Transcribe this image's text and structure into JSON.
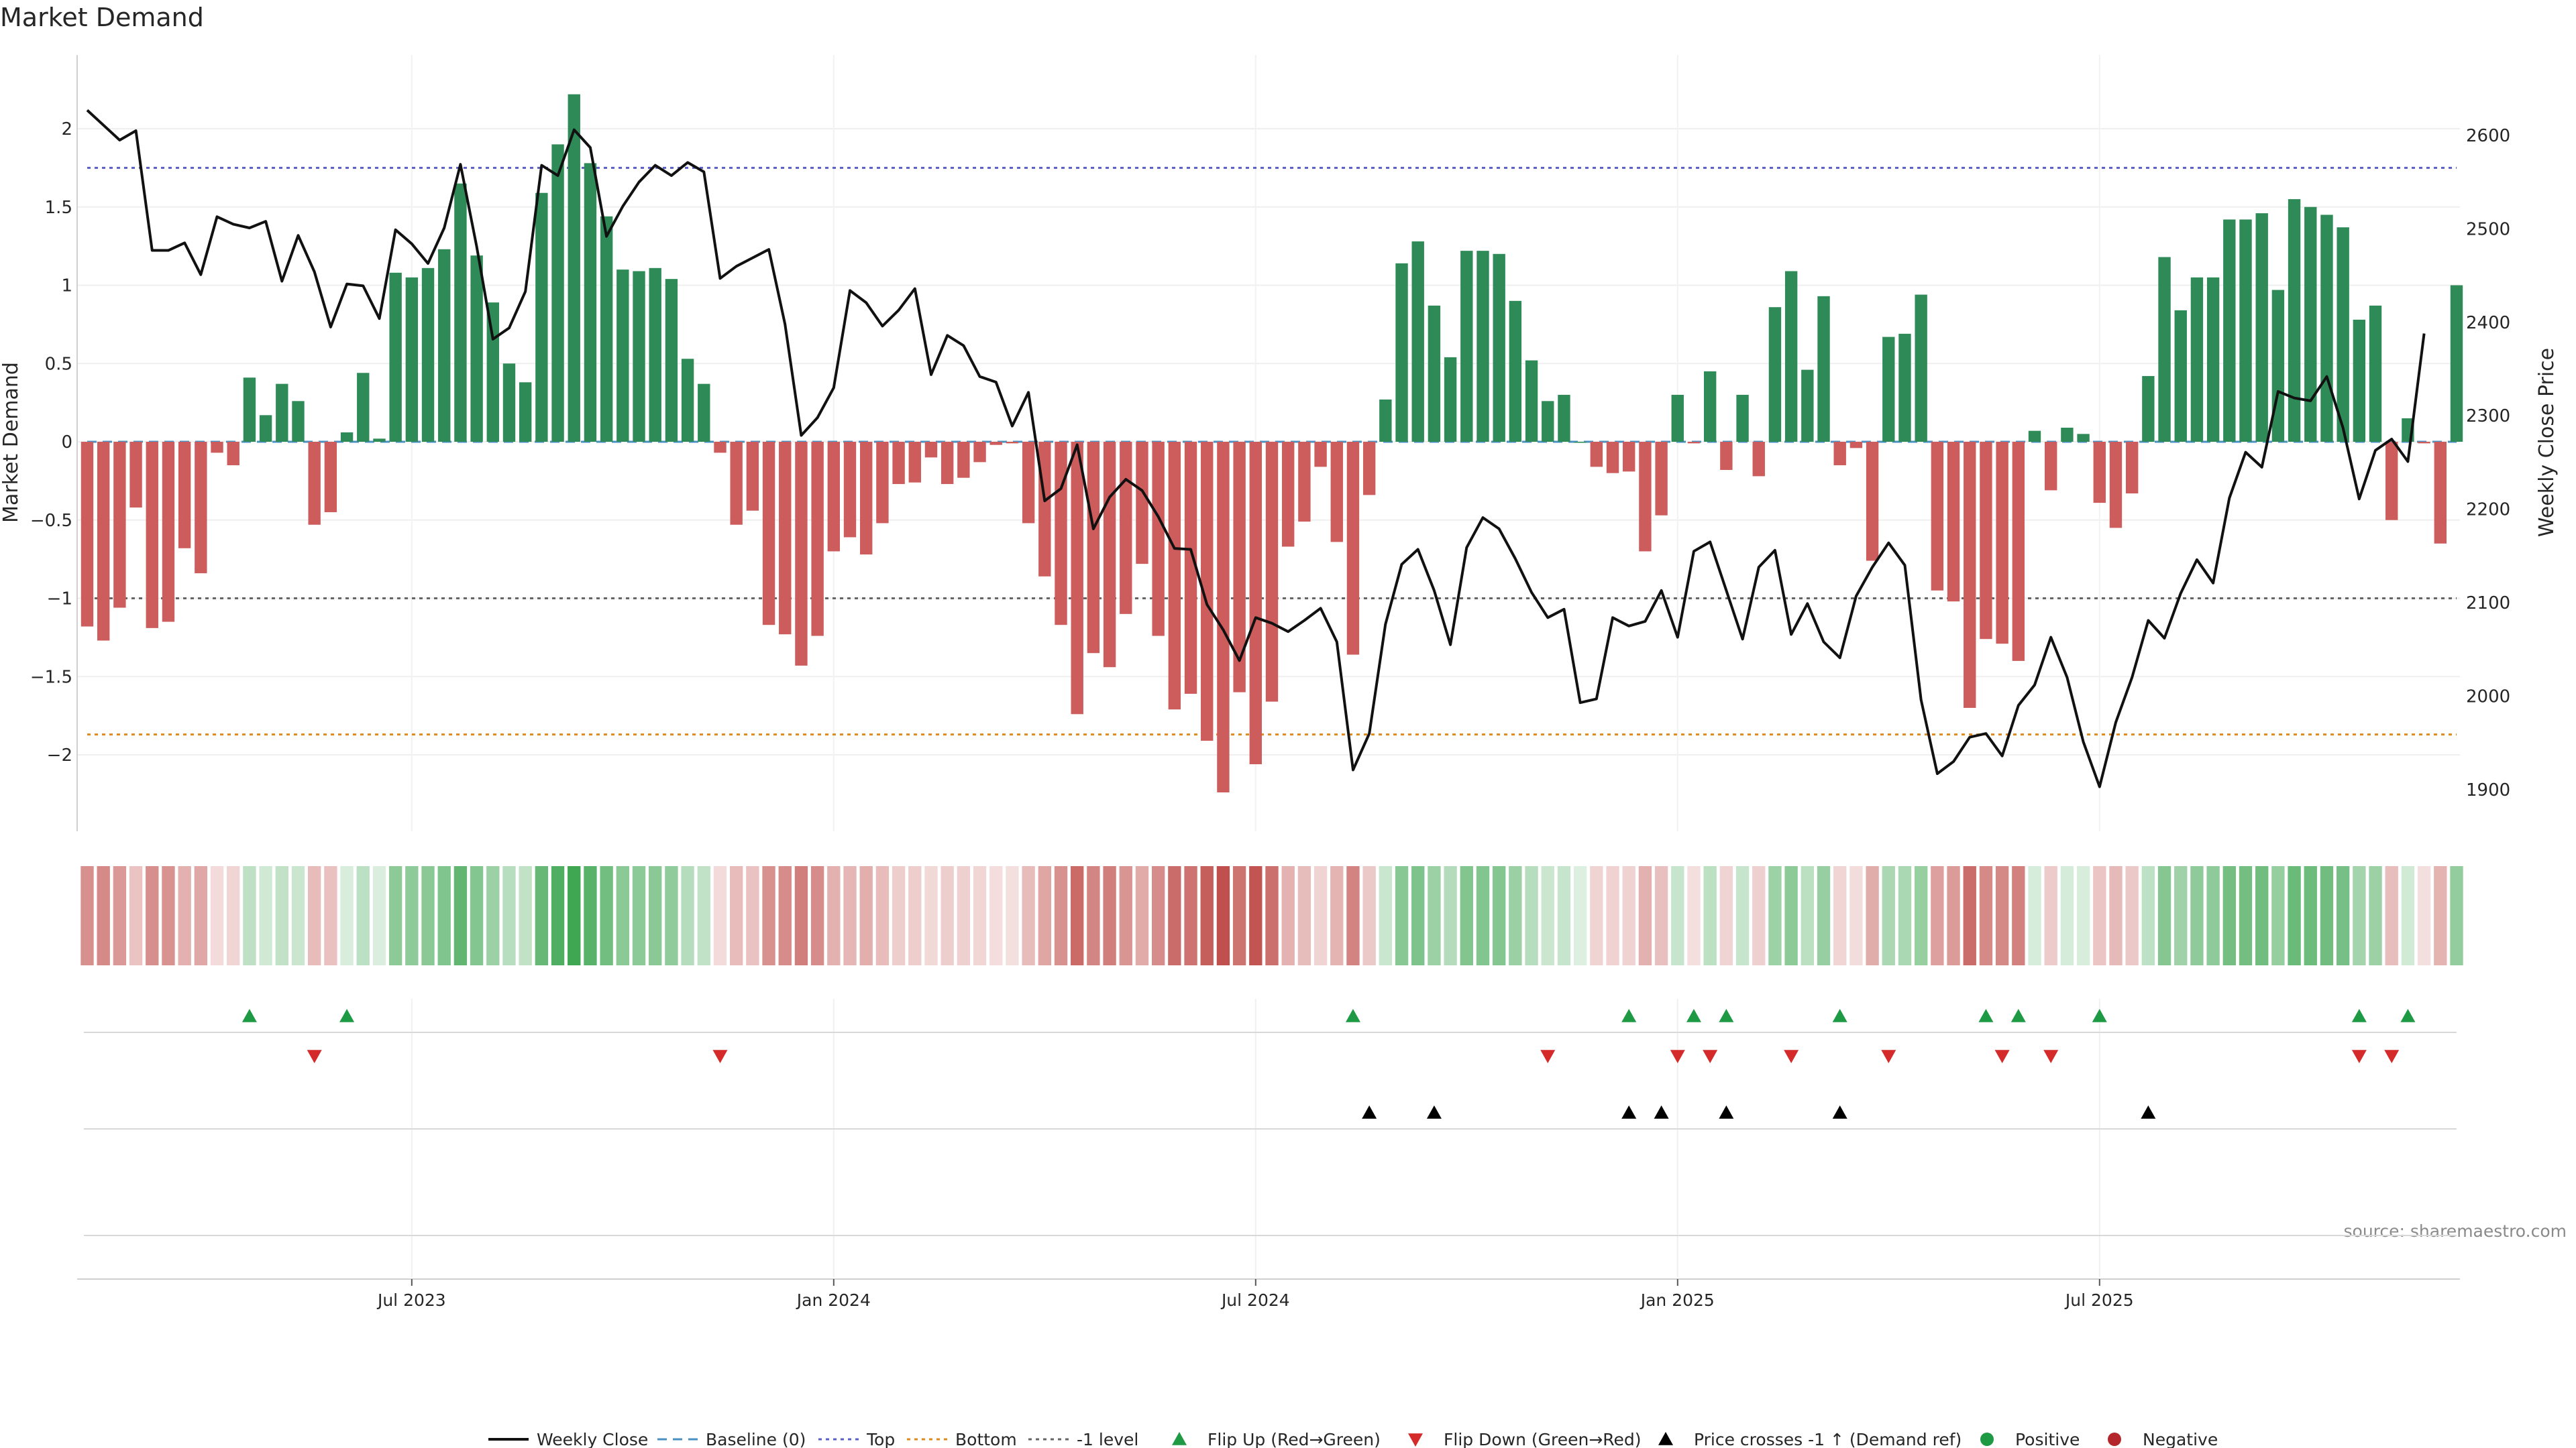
{
  "chart_data": {
    "type": "bar",
    "title": "Market Demand",
    "ylabel": "Market Demand",
    "y2label": "Weekly Close Price",
    "source": "source: sharemaestro.com",
    "ylim": [
      -2.5,
      2.5
    ],
    "y2lim": [
      1860,
      2660
    ],
    "yticks": [
      2,
      1.5,
      1,
      0.5,
      0,
      -0.5,
      -1,
      -1.5,
      -2
    ],
    "yticklabels": [
      "2",
      "1.5",
      "1",
      "0.5",
      "0",
      "−0.5",
      "−1",
      "−1.5",
      "−2"
    ],
    "y2ticks": [
      2600,
      2500,
      2400,
      2300,
      2200,
      2100,
      2000,
      1900
    ],
    "y2ticklabels": [
      "2600",
      "2500",
      "2400",
      "2300",
      "2200",
      "2100",
      "2000",
      "1900"
    ],
    "xticks": [
      {
        "week": 20,
        "label": "Jul 2023"
      },
      {
        "week": 46,
        "label": "Jan 2024"
      },
      {
        "week": 72,
        "label": "Jul 2024"
      },
      {
        "week": 98,
        "label": "Jan 2025"
      },
      {
        "week": 124,
        "label": "Jul 2025"
      }
    ],
    "levels": {
      "baseline": 0,
      "top": 1.75,
      "bottom": -1.87,
      "minus_one": -1
    },
    "demand": [
      -1.18,
      -1.27,
      -1.06,
      -0.42,
      -1.19,
      -1.15,
      -0.68,
      -0.84,
      -0.07,
      -0.15,
      0.41,
      0.17,
      0.37,
      0.26,
      -0.53,
      -0.45,
      0.06,
      0.44,
      0.02,
      1.08,
      1.05,
      1.11,
      1.23,
      1.65,
      1.19,
      0.89,
      0.5,
      0.38,
      1.59,
      1.9,
      2.22,
      1.78,
      1.44,
      1.1,
      1.09,
      1.11,
      1.04,
      0.53,
      0.37,
      -0.07,
      -0.53,
      -0.44,
      -1.17,
      -1.23,
      -1.43,
      -1.24,
      -0.7,
      -0.61,
      -0.72,
      -0.52,
      -0.27,
      -0.26,
      -0.1,
      -0.27,
      -0.23,
      -0.13,
      -0.02,
      -0.01,
      -0.52,
      -0.86,
      -1.17,
      -1.74,
      -1.35,
      -1.44,
      -1.1,
      -0.78,
      -1.24,
      -1.71,
      -1.61,
      -1.91,
      -2.24,
      -1.6,
      -2.06,
      -1.66,
      -0.67,
      -0.51,
      -0.16,
      -0.64,
      -1.36,
      -0.34,
      0.27,
      1.14,
      1.28,
      0.87,
      0.54,
      1.22,
      1.22,
      1.2,
      0.9,
      0.52,
      0.26,
      0.3,
      0,
      -0.16,
      -0.2,
      -0.19,
      -0.7,
      -0.47,
      0.3,
      -0.01,
      0.45,
      -0.18,
      0.3,
      -0.22,
      0.86,
      1.09,
      0.46,
      0.93,
      -0.15,
      -0.04,
      -0.76,
      0.67,
      0.69,
      0.94,
      -0.95,
      -1.02,
      -1.7,
      -1.26,
      -1.29,
      -1.4,
      0.07,
      -0.31,
      0.09,
      0.05,
      -0.39,
      -0.55,
      -0.33,
      0.42,
      1.18,
      0.84,
      1.05,
      1.05,
      1.42,
      1.42,
      1.46,
      0.97,
      1.55,
      1.5,
      1.45,
      1.37,
      0.78,
      0.87,
      -0.5,
      0.15,
      -0.01,
      -0.65,
      1
    ],
    "close": [
      2627,
      2611,
      2595,
      2605,
      2477,
      2477,
      2485,
      2451,
      2513,
      2505,
      2501,
      2508,
      2444,
      2493,
      2454,
      2395,
      2441,
      2439,
      2404,
      2499,
      2484,
      2463,
      2501,
      2569,
      2481,
      2382,
      2394,
      2433,
      2568,
      2557,
      2606,
      2587,
      2492,
      2524,
      2550,
      2568,
      2557,
      2571,
      2561,
      2447,
      2460,
      2469,
      2478,
      2398,
      2279,
      2298,
      2330,
      2434,
      2421,
      2396,
      2413,
      2436,
      2344,
      2386,
      2375,
      2342,
      2336,
      2289,
      2325,
      2209,
      2222,
      2269,
      2179,
      2213,
      2232,
      2220,
      2192,
      2158,
      2157,
      2098,
      2071,
      2038,
      2084,
      2078,
      2069,
      2081,
      2094,
      2058,
      1921,
      1960,
      2077,
      2141,
      2157,
      2113,
      2055,
      2159,
      2191,
      2179,
      2147,
      2111,
      2084,
      2093,
      1993,
      1997,
      2084,
      2075,
      2080,
      2113,
      2063,
      2155,
      2165,
      2113,
      2061,
      2138,
      2156,
      2066,
      2099,
      2058,
      2041,
      2107,
      2138,
      2164,
      2140,
      1996,
      1917,
      1930,
      1956,
      1960,
      1936,
      1990,
      2012,
      2063,
      2020,
      1951,
      1903,
      1972,
      2020,
      2081,
      2062,
      2110,
      2146,
      2121,
      2212,
      2261,
      2245,
      2326,
      2319,
      2316,
      2342,
      2287,
      2211,
      2263,
      2275,
      2251,
      2388
    ],
    "flip_up_weeks": [
      10,
      16,
      78,
      95,
      99,
      101,
      108,
      117,
      119,
      124,
      140,
      143
    ],
    "flip_down_weeks": [
      14,
      39,
      90,
      98,
      100,
      105,
      111,
      118,
      121,
      140,
      142
    ],
    "cross_weeks": [
      79,
      83,
      95,
      97,
      101,
      108,
      127
    ],
    "legend": [
      {
        "label": "Weekly Close",
        "kind": "line",
        "color": "#111111"
      },
      {
        "label": "Baseline (0)",
        "kind": "dash",
        "color": "#4a90c2"
      },
      {
        "label": "Top",
        "kind": "dot",
        "color": "#5a5fc8"
      },
      {
        "label": "Bottom",
        "kind": "dot",
        "color": "#e08a1e"
      },
      {
        "label": "-1 level",
        "kind": "dot",
        "color": "#666666"
      },
      {
        "label": "Flip Up (Red→Green)",
        "kind": "triup",
        "color": "#1e9a45"
      },
      {
        "label": "Flip Down (Green→Red)",
        "kind": "tridown",
        "color": "#d42a2a"
      },
      {
        "label": "Price crosses -1 ↑ (Demand ref)",
        "kind": "triup",
        "color": "#000000"
      },
      {
        "label": "Positive",
        "kind": "circle",
        "color": "#1e9a45"
      },
      {
        "label": "Negative",
        "kind": "circle",
        "color": "#b3262b"
      }
    ],
    "colors": {
      "positive": "#2e8b57",
      "negative": "#cd5c5c",
      "heat_pos": "#3fa652",
      "heat_neg": "#c0504d"
    }
  }
}
